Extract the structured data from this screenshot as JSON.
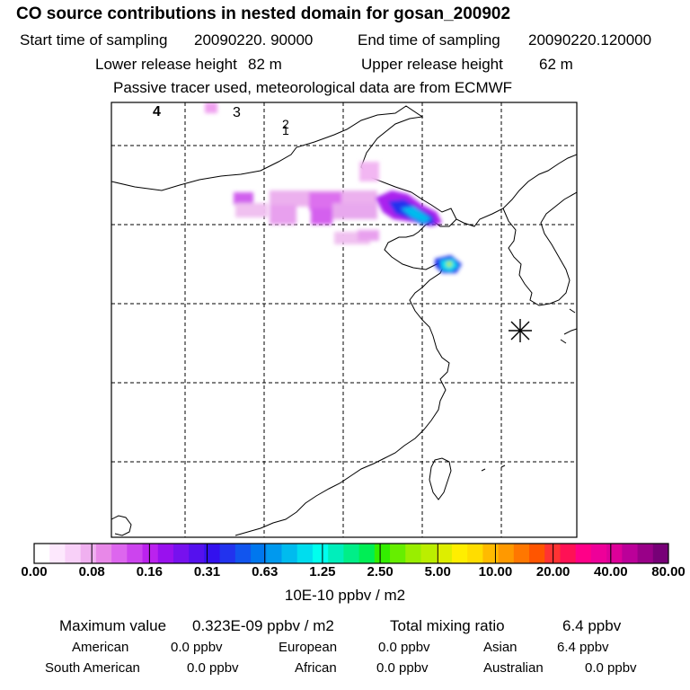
{
  "title": "CO  source contributions in nested domain for gosan_200902",
  "start_label": "Start time of sampling",
  "start_value": "20090220. 90000",
  "end_label": "End time of sampling",
  "end_value": "20090220.120000",
  "lower_label": "Lower release height",
  "lower_value": "82 m",
  "upper_label": "Upper release height",
  "upper_value": "62 m",
  "note": "Passive tracer used, meteorological data are from ECMWF",
  "map_markers": [
    "4",
    "3",
    "2",
    "1"
  ],
  "colorbar": {
    "ticks": [
      "0.00",
      "0.08",
      "0.16",
      "0.31",
      "0.63",
      "1.25",
      "2.50",
      "5.00",
      "10.00",
      "20.00",
      "40.00",
      "80.00"
    ],
    "colors": [
      "#ffffff",
      "#fde8fd",
      "#f8d0f8",
      "#f0b0f0",
      "#e888e8",
      "#dd66ee",
      "#cc44ee",
      "#bb22ee",
      "#9911ee",
      "#7711ee",
      "#5511ee",
      "#3311ee",
      "#2233ee",
      "#1155ee",
      "#0077ee",
      "#0099ee",
      "#00bbee",
      "#00ddee",
      "#00ffee",
      "#00eebb",
      "#00ee88",
      "#00ee55",
      "#33ee00",
      "#66ee00",
      "#99ee00",
      "#bbee00",
      "#ddee00",
      "#ffee00",
      "#ffdd00",
      "#ffbb00",
      "#ff9900",
      "#ff7700",
      "#ff5500",
      "#ff3333",
      "#ff1155",
      "#ff0088",
      "#ee0099",
      "#dd0099",
      "#bb0099",
      "#990088",
      "#770077"
    ],
    "unit": "10E-10 ppbv / m2"
  },
  "summary": {
    "max_label": "Maximum value",
    "max_value": "0.323E-09 ppbv / m2",
    "total_label": "Total mixing ratio",
    "total_value": "6.4 ppbv"
  },
  "regions": [
    {
      "name": "American",
      "value": "0.0 ppbv"
    },
    {
      "name": "European",
      "value": "0.0 ppbv"
    },
    {
      "name": "Asian",
      "value": "6.4 ppbv"
    },
    {
      "name": "South American",
      "value": "0.0 ppbv"
    },
    {
      "name": "African",
      "value": "0.0 ppbv"
    },
    {
      "name": "Australian",
      "value": "0.0 ppbv"
    }
  ]
}
